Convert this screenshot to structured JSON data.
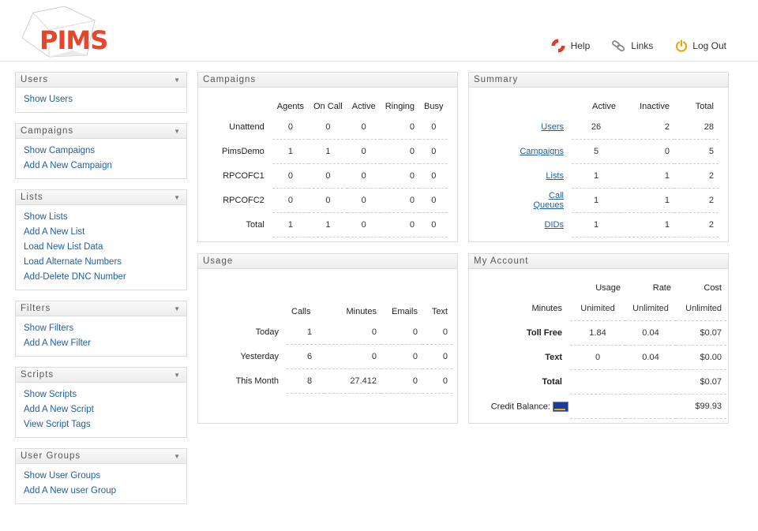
{
  "brand": {
    "logo_text": "PIMS",
    "accent": "#e8462c"
  },
  "topnav": {
    "help": {
      "label": "Help",
      "icon": "lifebuoy-icon"
    },
    "links": {
      "label": "Links",
      "icon": "link-icon"
    },
    "logout": {
      "label": "Log Out",
      "icon": "power-icon"
    }
  },
  "sidebar": {
    "users": {
      "title": "Users",
      "items": [
        "Show Users"
      ]
    },
    "campaigns": {
      "title": "Campaigns",
      "items": [
        "Show Campaigns",
        "Add A New Campaign"
      ]
    },
    "lists": {
      "title": "Lists",
      "items": [
        "Show Lists",
        "Add A New List",
        "Load New List Data",
        "Load Alternate Numbers",
        "Add-Delete DNC Number"
      ]
    },
    "filters": {
      "title": "Filters",
      "items": [
        "Show Filters",
        "Add A New Filter"
      ]
    },
    "scripts": {
      "title": "Scripts",
      "items": [
        "Show Scripts",
        "Add A New Script",
        "View Script Tags"
      ]
    },
    "user_groups": {
      "title": "User Groups",
      "items": [
        "Show User Groups",
        "Add A New user Group"
      ]
    }
  },
  "campaigns_panel": {
    "title": "Campaigns",
    "headers": [
      "Agents",
      "On Call",
      "Active",
      "Ringing",
      "Busy"
    ],
    "rows": [
      {
        "label": "Unattend",
        "values": [
          "0",
          "0",
          "0",
          "0",
          "0"
        ]
      },
      {
        "label": "PimsDemo",
        "values": [
          "1",
          "1",
          "0",
          "0",
          "0"
        ]
      },
      {
        "label": "RPCOFC1",
        "values": [
          "0",
          "0",
          "0",
          "0",
          "0"
        ]
      },
      {
        "label": "RPCOFC2",
        "values": [
          "0",
          "0",
          "0",
          "0",
          "0"
        ]
      },
      {
        "label": "Total",
        "values": [
          "1",
          "1",
          "0",
          "0",
          "0"
        ]
      }
    ]
  },
  "summary_panel": {
    "title": "Summary",
    "headers": [
      "Active",
      "Inactive",
      "Total"
    ],
    "rows": [
      {
        "label": "Users",
        "values": [
          "26",
          "2",
          "28"
        ]
      },
      {
        "label": "Campaigns",
        "values": [
          "5",
          "0",
          "5"
        ]
      },
      {
        "label": "Lists",
        "values": [
          "1",
          "1",
          "2"
        ]
      },
      {
        "label": "Call Queues",
        "values": [
          "1",
          "1",
          "2"
        ]
      },
      {
        "label": "DIDs",
        "values": [
          "1",
          "1",
          "2"
        ]
      }
    ]
  },
  "usage_panel": {
    "title": "Usage",
    "headers": [
      "Calls",
      "Minutes",
      "Emails",
      "Text"
    ],
    "rows": [
      {
        "label": "Today",
        "values": [
          "1",
          "0",
          "0",
          "0"
        ]
      },
      {
        "label": "Yesterday",
        "values": [
          "6",
          "0",
          "0",
          "0"
        ]
      },
      {
        "label": "This Month",
        "values": [
          "8",
          "27.412",
          "0",
          "0"
        ]
      }
    ]
  },
  "account_panel": {
    "title": "My Account",
    "headers": [
      "Usage",
      "Rate",
      "Cost"
    ],
    "minutes": {
      "label": "Minutes",
      "values": [
        "Unimited",
        "Unlimited",
        "Unlimited"
      ]
    },
    "toll_free": {
      "label": "Toll Free",
      "values": [
        "1.84",
        "0.04",
        "$0.07"
      ]
    },
    "text": {
      "label": "Text",
      "values": [
        "0",
        "0.04",
        "$0.00"
      ]
    },
    "total": {
      "label": "Total",
      "value": "$0.07"
    },
    "credit": {
      "label": "Credit Balance:",
      "value": "$99.93",
      "icon": "visa-card-icon"
    }
  }
}
